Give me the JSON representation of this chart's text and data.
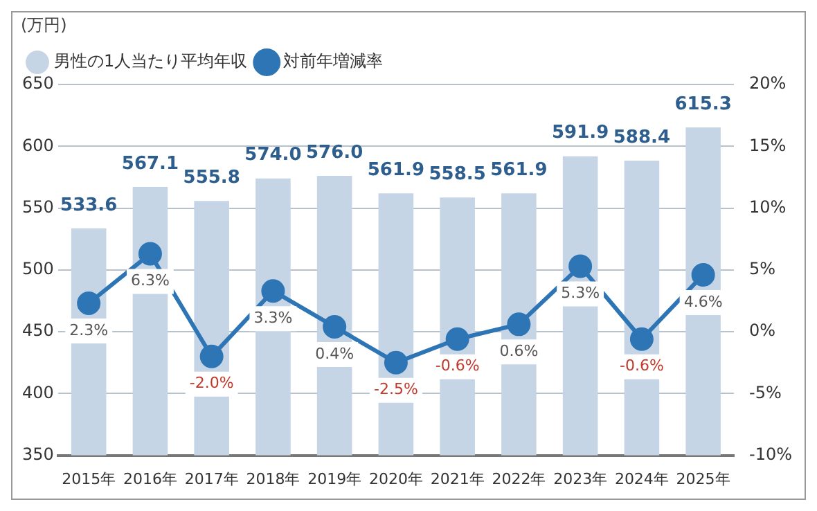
{
  "chart_data": {
    "type": "bar",
    "ylabel": "(万円)",
    "categories": [
      "2015年",
      "2016年",
      "2017年",
      "2018年",
      "2019年",
      "2020年",
      "2021年",
      "2022年",
      "2023年",
      "2024年",
      "2025年"
    ],
    "series": [
      {
        "name": "男性の1人当たり平均年収",
        "color": "#c5d5e5",
        "values": [
          533.6,
          567.1,
          555.8,
          574.0,
          576.0,
          561.9,
          558.5,
          561.9,
          591.9,
          588.4,
          615.3
        ],
        "value_labels": [
          "533.6",
          "567.1",
          "555.8",
          "574.0",
          "576.0",
          "561.9",
          "558.5",
          "561.9",
          "591.9",
          "588.4",
          "615.3"
        ]
      },
      {
        "name": "対前年増減率",
        "type": "line",
        "axis": "y2",
        "color": "#2e75b6",
        "values": [
          2.3,
          6.3,
          -2.0,
          3.3,
          0.4,
          -2.5,
          -0.6,
          0.6,
          5.3,
          -0.6,
          4.6
        ],
        "value_labels": [
          "2.3%",
          "6.3%",
          "-2.0%",
          "3.3%",
          "0.4%",
          "-2.5%",
          "-0.6%",
          "0.6%",
          "5.3%",
          "-0.6%",
          "4.6%"
        ]
      }
    ],
    "ylim": [
      350,
      650
    ],
    "yticks": [
      350,
      400,
      450,
      500,
      550,
      600,
      650
    ],
    "y2lim": [
      -10,
      20
    ],
    "y2ticks": [
      {
        "value": -10,
        "label": "-10%"
      },
      {
        "value": -5,
        "label": "-5%"
      },
      {
        "value": 0,
        "label": "0%"
      },
      {
        "value": 5,
        "label": "5%"
      },
      {
        "value": 10,
        "label": "10%"
      },
      {
        "value": 15,
        "label": "15%"
      },
      {
        "value": 20,
        "label": "20%"
      }
    ],
    "grid": "y",
    "legend": "top left",
    "marker": "circle"
  }
}
